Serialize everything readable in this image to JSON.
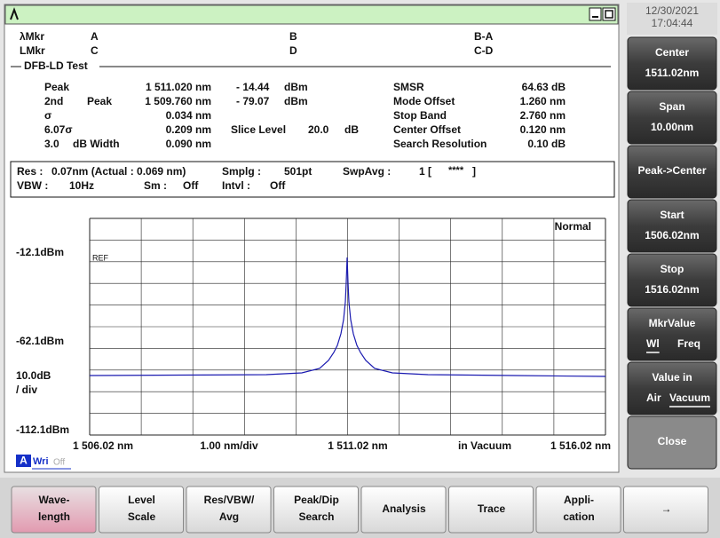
{
  "clock": {
    "date": "12/30/2021",
    "time": "17:04:44"
  },
  "markers": [
    [
      "λMkr",
      "A",
      "B",
      "B-A"
    ],
    [
      "LMkr",
      "C",
      "D",
      "C-D"
    ]
  ],
  "test_title": "DFB-LD Test",
  "results": {
    "peak": {
      "label": "Peak",
      "wavelength": "1 511.020 nm",
      "level": "- 14.44",
      "unit": "dBm"
    },
    "second_peak": {
      "label": "2nd",
      "label2": "Peak",
      "wavelength": "1 509.760 nm",
      "level": "- 79.07",
      "unit": "dBm"
    },
    "sigma": {
      "label": "σ",
      "value": "0.034 nm"
    },
    "sigma_607": {
      "label": "6.07σ",
      "value": "0.209 nm"
    },
    "width": {
      "label": "3.0",
      "label2": "dB Width",
      "value": "0.090 nm"
    },
    "slice_level": {
      "label": "Slice Level",
      "value": "20.0",
      "unit": "dB"
    },
    "smsr": {
      "label": "SMSR",
      "value": "64.63 dB"
    },
    "mode_offset": {
      "label": "Mode Offset",
      "value": "1.260 nm"
    },
    "stop_band": {
      "label": "Stop Band",
      "value": "2.760 nm"
    },
    "center_offset": {
      "label": "Center Offset",
      "value": "0.120 nm"
    },
    "search_resolution": {
      "label": "Search Resolution",
      "value": "0.10  dB"
    }
  },
  "settings": {
    "res": {
      "label": "Res :",
      "value": "0.07nm (Actual : 0.069 nm)"
    },
    "smplg": {
      "label": "Smplg :",
      "value": "501pt"
    },
    "swpavg": {
      "label": "SwpAvg :",
      "value": "1 [",
      "stars": "****",
      "close": "]"
    },
    "vbw": {
      "label": "VBW :",
      "value": "10Hz"
    },
    "sm": {
      "label": "Sm :",
      "value": "Off"
    },
    "intvl": {
      "label": "Intvl :",
      "value": "Off"
    }
  },
  "plot": {
    "mode": "Normal",
    "ref": "REF",
    "y_labels": [
      "-12.1dBm",
      "-62.1dBm",
      "10.0dB",
      "/ div",
      "-112.1dBm"
    ],
    "x_labels": [
      "1 506.02 nm",
      "1.00 nm/div",
      "1 511.02 nm",
      "in Vacuum",
      "1 516.02 nm"
    ],
    "status": [
      "A",
      "Wri",
      "Off"
    ]
  },
  "side_buttons": [
    {
      "title": "Center",
      "value": "1511.02nm"
    },
    {
      "title": "Span",
      "value": "10.00nm"
    },
    {
      "title": "Peak->Center"
    },
    {
      "title": "Start",
      "value": "1506.02nm"
    },
    {
      "title": "Stop",
      "value": "1516.02nm"
    },
    {
      "title": "MkrValue",
      "options": [
        "Wl",
        "Freq"
      ]
    },
    {
      "title": "Value in",
      "options": [
        "Air",
        "Vacuum"
      ]
    },
    {
      "title": "Close"
    }
  ],
  "bottom_tabs": [
    [
      "Wave-",
      "length"
    ],
    [
      "Level",
      "Scale"
    ],
    [
      "Res/VBW/",
      "Avg"
    ],
    [
      "Peak/Dip",
      "Search"
    ],
    [
      "Analysis"
    ],
    [
      "Trace"
    ],
    [
      "Appli-",
      "cation"
    ],
    [
      "→"
    ]
  ]
}
